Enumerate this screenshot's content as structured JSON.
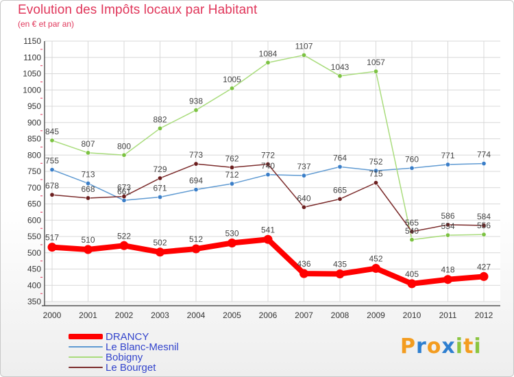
{
  "title": "Evolution des Impôts locaux par Habitant",
  "subtitle": "(en € et par an)",
  "logo": {
    "text": "Proxiti",
    "letter_colors": [
      "#f39c1f",
      "#2e7fd0",
      "#f39c1f",
      "#2e7fd0",
      "#8bc540",
      "#f39c1f",
      "#8bc540"
    ]
  },
  "chart_data": {
    "type": "line",
    "title": "Evolution des Impôts locaux par Habitant",
    "subtitle": "(en € et par an)",
    "xlabel": "",
    "ylabel": "",
    "categories": [
      "2000",
      "2001",
      "2002",
      "2003",
      "2004",
      "2005",
      "2006",
      "2007",
      "2008",
      "2009",
      "2010",
      "2011",
      "2012"
    ],
    "ylim": [
      350,
      1150
    ],
    "yticks": [
      350,
      400,
      450,
      500,
      550,
      600,
      650,
      700,
      750,
      800,
      850,
      900,
      950,
      1000,
      1050,
      1100,
      1150
    ],
    "grid": true,
    "legend": "bottom-left",
    "series": [
      {
        "name": "Le Blanc-Mesnil",
        "color": "#5f9ad2",
        "marker": "#3a7ec8",
        "label_color": "#444444",
        "values": [
          755,
          713,
          661,
          671,
          694,
          712,
          740,
          737,
          764,
          752,
          760,
          771,
          774
        ],
        "labels": [
          "755",
          "713",
          "661",
          "671",
          "694",
          "712",
          "740",
          "737",
          "764",
          "752",
          "760",
          "771",
          "774"
        ]
      },
      {
        "name": "Bobigny",
        "color": "#a9dc7c",
        "marker": "#7cc242",
        "label_color": "#444444",
        "values": [
          845,
          807,
          800,
          882,
          938,
          1005,
          1084,
          1107,
          1043,
          1057,
          540,
          554,
          556
        ],
        "labels": [
          "845",
          "807",
          "800",
          "882",
          "938",
          "1005",
          "1084",
          "1107",
          "1043",
          "1057",
          "540",
          "554",
          "556"
        ]
      },
      {
        "name": "Le Bourget",
        "color": "#7b2b2b",
        "marker": "#6b1e1e",
        "label_color": "#444444",
        "values": [
          678,
          668,
          673,
          729,
          773,
          762,
          772,
          640,
          665,
          715,
          565,
          586,
          584
        ],
        "labels": [
          "678",
          "668",
          "673",
          "729",
          "773",
          "762",
          "772",
          "640",
          "665",
          "715",
          "565",
          "586",
          "584"
        ]
      },
      {
        "name": "DRANCY",
        "color": "#ff0000",
        "marker": "#ff0000",
        "label_color": "#444444",
        "values": [
          517,
          510,
          522,
          502,
          512,
          530,
          541,
          436,
          435,
          452,
          405,
          418,
          427
        ],
        "labels": [
          "517",
          "510",
          "522",
          "502",
          "512",
          "530",
          "541",
          "436",
          "435",
          "452",
          "405",
          "418",
          "427"
        ]
      }
    ],
    "legend_entries": [
      {
        "name": "DRANCY",
        "color": "#ff0000",
        "text_color": "#3344cc"
      },
      {
        "name": "Le Blanc-Mesnil",
        "color": "#5f9ad2",
        "text_color": "#3344cc"
      },
      {
        "name": "Bobigny",
        "color": "#a9dc7c",
        "text_color": "#3344cc"
      },
      {
        "name": "Le Bourget",
        "color": "#7b2b2b",
        "text_color": "#3344cc"
      }
    ]
  }
}
